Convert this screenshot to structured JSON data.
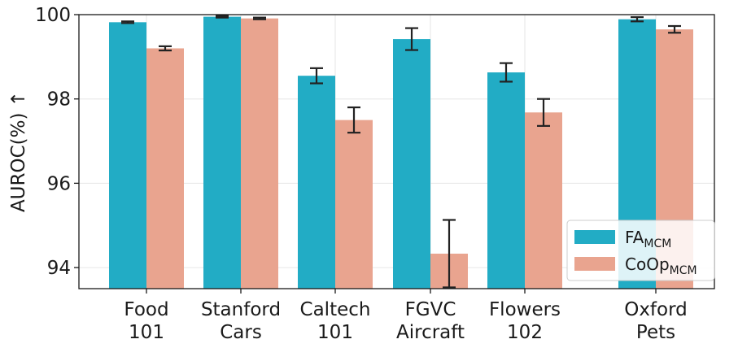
{
  "chart_data": {
    "type": "bar",
    "title": "",
    "xlabel": "",
    "ylabel": "AUROC(%) ↑",
    "ylim": [
      93.5,
      100
    ],
    "yticks": [
      "94",
      "96",
      "98",
      "100"
    ],
    "grid": true,
    "legend_position": "bottom-right",
    "categories": [
      [
        "Food",
        "101"
      ],
      [
        "Stanford",
        "Cars"
      ],
      [
        "Caltech",
        "101"
      ],
      [
        "FGVC",
        "Aircraft"
      ],
      [
        "Flowers",
        "102"
      ],
      [
        "Oxford",
        "Pets"
      ]
    ],
    "series": [
      {
        "name": "FA",
        "subscript": "MCM",
        "color": "#22acc5",
        "values": [
          99.82,
          99.95,
          98.55,
          99.42,
          98.63,
          99.89
        ],
        "errors": [
          0.02,
          0.02,
          0.18,
          0.26,
          0.22,
          0.05
        ]
      },
      {
        "name": "CoOp",
        "subscript": "MCM",
        "color": "#e9a48f",
        "values": [
          99.2,
          99.91,
          97.5,
          94.33,
          97.68,
          99.65
        ],
        "errors": [
          0.05,
          0.02,
          0.3,
          0.8,
          0.32,
          0.08
        ]
      }
    ]
  }
}
